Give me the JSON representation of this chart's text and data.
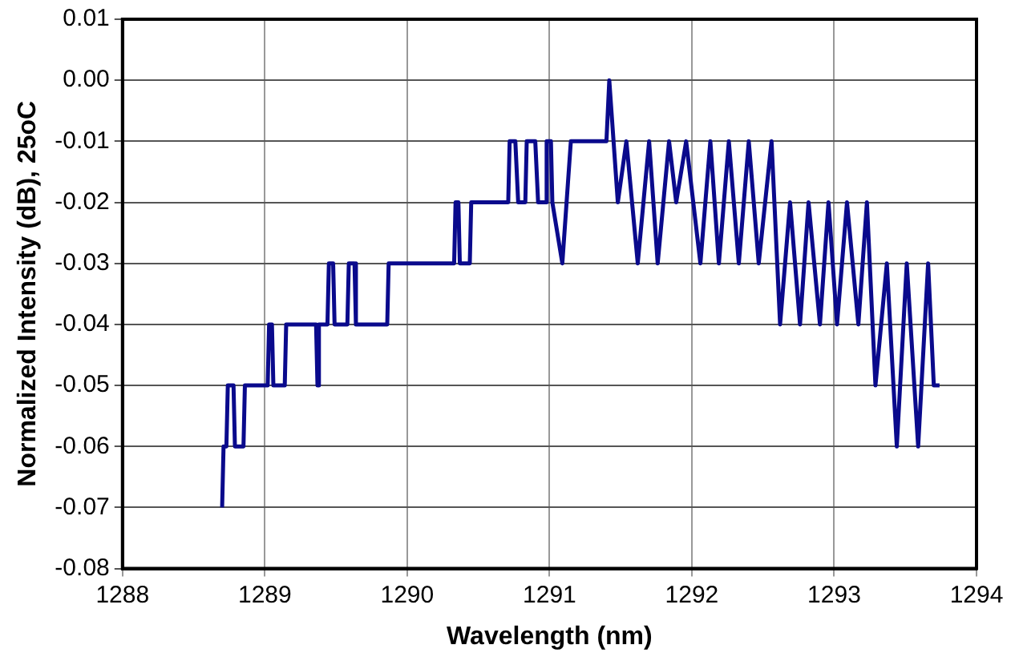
{
  "chart_data": {
    "type": "line",
    "xlabel": "Wavelength (nm)",
    "ylabel": "Normalized Intensity (dB), 25oC",
    "x": [
      1288.7,
      1288.71,
      1288.73,
      1288.74,
      1288.78,
      1288.79,
      1288.85,
      1288.86,
      1289.02,
      1289.03,
      1289.05,
      1289.06,
      1289.14,
      1289.15,
      1289.36,
      1289.37,
      1289.38,
      1289.44,
      1289.45,
      1289.48,
      1289.49,
      1289.58,
      1289.59,
      1289.63,
      1289.64,
      1289.86,
      1289.87,
      1290.33,
      1290.34,
      1290.36,
      1290.37,
      1290.44,
      1290.45,
      1290.71,
      1290.72,
      1290.76,
      1290.78,
      1290.83,
      1290.84,
      1290.9,
      1290.92,
      1290.97,
      1290.98,
      1291.01,
      1291.02,
      1291.09,
      1291.12,
      1291.15,
      1291.4,
      1291.42,
      1291.45,
      1291.48,
      1291.54,
      1291.62,
      1291.7,
      1291.76,
      1291.84,
      1291.89,
      1291.96,
      1292.06,
      1292.13,
      1292.19,
      1292.26,
      1292.33,
      1292.4,
      1292.47,
      1292.56,
      1292.62,
      1292.69,
      1292.76,
      1292.82,
      1292.9,
      1292.96,
      1293.02,
      1293.09,
      1293.17,
      1293.23,
      1293.29,
      1293.37,
      1293.44,
      1293.51,
      1293.59,
      1293.66,
      1293.7,
      1293.74
    ],
    "series": [
      {
        "color": "#0a0a8c",
        "values": [
          -0.07,
          -0.06,
          -0.06,
          -0.05,
          -0.05,
          -0.06,
          -0.06,
          -0.05,
          -0.05,
          -0.04,
          -0.04,
          -0.05,
          -0.05,
          -0.04,
          -0.04,
          -0.05,
          -0.04,
          -0.04,
          -0.03,
          -0.03,
          -0.04,
          -0.04,
          -0.03,
          -0.03,
          -0.04,
          -0.04,
          -0.03,
          -0.03,
          -0.02,
          -0.02,
          -0.03,
          -0.03,
          -0.02,
          -0.02,
          -0.01,
          -0.01,
          -0.02,
          -0.02,
          -0.01,
          -0.01,
          -0.02,
          -0.02,
          -0.01,
          -0.01,
          -0.02,
          -0.03,
          -0.02,
          -0.01,
          -0.01,
          0,
          -0.01,
          -0.02,
          -0.01,
          -0.03,
          -0.01,
          -0.03,
          -0.01,
          -0.02,
          -0.01,
          -0.03,
          -0.01,
          -0.03,
          -0.01,
          -0.03,
          -0.01,
          -0.03,
          -0.01,
          -0.04,
          -0.02,
          -0.04,
          -0.02,
          -0.04,
          -0.02,
          -0.04,
          -0.02,
          -0.04,
          -0.02,
          -0.05,
          -0.03,
          -0.06,
          -0.03,
          -0.06,
          -0.03,
          -0.05,
          -0.05
        ]
      }
    ],
    "xlim": [
      1288,
      1294
    ],
    "xticks": [
      1288,
      1289,
      1290,
      1291,
      1292,
      1293,
      1294
    ],
    "ylim": [
      -0.08,
      0.01
    ],
    "yticks": [
      -0.08,
      -0.07,
      -0.06,
      -0.05,
      -0.04,
      -0.03,
      -0.02,
      -0.01,
      {
        "value": 0,
        "label": "0.00"
      },
      0.01
    ],
    "grid": true,
    "legend": false,
    "marker": "none",
    "line_style": "solid"
  }
}
